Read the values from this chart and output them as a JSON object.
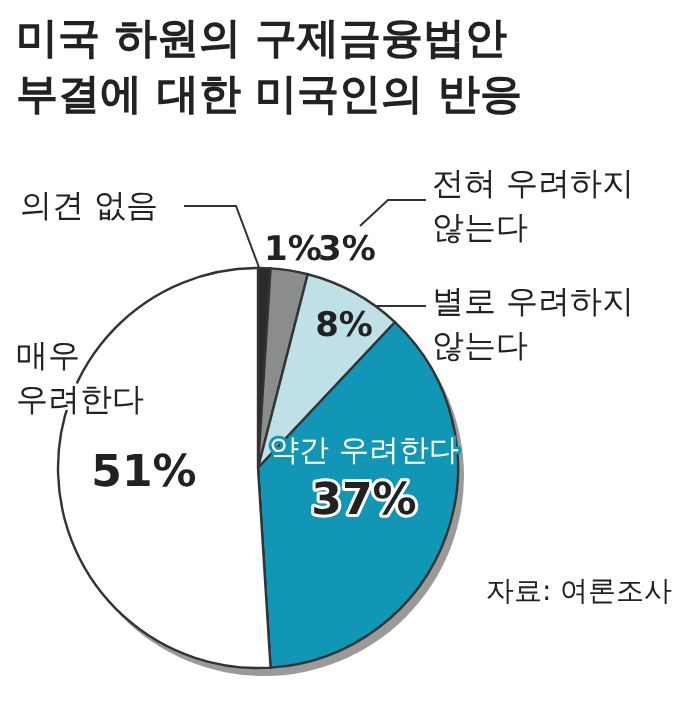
{
  "chart_data": {
    "type": "pie",
    "title": "미국 하원의 구제금융법안\n부결에 대한 미국인의 반응",
    "categories": [
      "의견 없음",
      "전혀 우려하지\n않는다",
      "별로 우려하지\n않는다",
      "약간 우려한다",
      "매우\n우려한다"
    ],
    "values": [
      1,
      3,
      8,
      37,
      51
    ],
    "colors": [
      "#2b2b2b",
      "#8a8c8e",
      "#bfe0e6",
      "#1196b5",
      "#ffffff"
    ],
    "value_labels": [
      "1%",
      "3%",
      "8%",
      "37%",
      "51%"
    ],
    "annotations": [
      "자료: 여론조사"
    ]
  }
}
